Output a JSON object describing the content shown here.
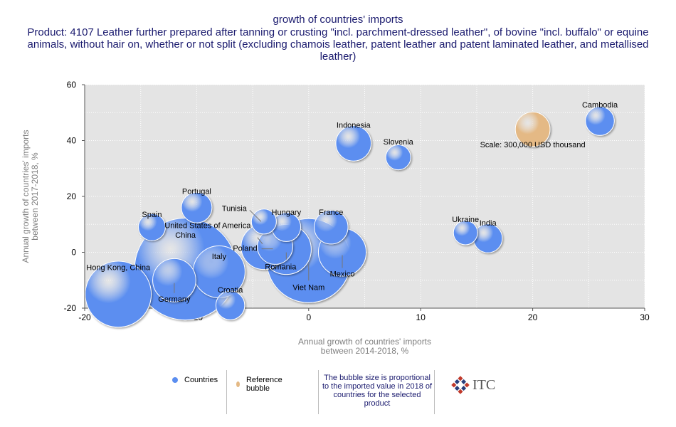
{
  "chart_data": {
    "type": "scatter",
    "title": "growth of countries' imports",
    "subtitle": "Product: 4107 Leather further prepared after tanning or crusting \"incl. parchment-dressed leather\", of bovine \"incl. buffalo\" or equine animals, without hair on, whether or not split (excluding chamois leather, patent leather and patent laminated leather, and metallised leather)",
    "xlabel_lines": [
      "Annual growth of countries' imports",
      "between 2014-2018, %"
    ],
    "ylabel_lines": [
      "Annual growth of countries' imports",
      "between 2017-2018, %"
    ],
    "xlim": [
      -20,
      30
    ],
    "ylim": [
      -20,
      60
    ],
    "x_ticks": [
      -20,
      -10,
      0,
      10,
      20,
      30
    ],
    "y_ticks": [
      -20,
      0,
      20,
      40,
      60
    ],
    "grid": true,
    "series": [
      {
        "name": "Countries",
        "color": "#5b8ef0",
        "points": [
          {
            "label": "Cambodia",
            "x": 26,
            "y": 47,
            "size": 40
          },
          {
            "label": "Indonesia",
            "x": 4,
            "y": 39,
            "size": 60
          },
          {
            "label": "Slovenia",
            "x": 8,
            "y": 34,
            "size": 30
          },
          {
            "label": "Portugal",
            "x": -10,
            "y": 16,
            "size": 45
          },
          {
            "label": "Spain",
            "x": -14,
            "y": 9,
            "size": 35
          },
          {
            "label": "Tunisia",
            "x": -4,
            "y": 11,
            "size": 30
          },
          {
            "label": "Hungary",
            "x": -2,
            "y": 9,
            "size": 40
          },
          {
            "label": "France",
            "x": 2,
            "y": 9,
            "size": 55
          },
          {
            "label": "Ukraine",
            "x": 14,
            "y": 7,
            "size": 28
          },
          {
            "label": "India",
            "x": 16,
            "y": 5,
            "size": 40
          },
          {
            "label": "United States of America",
            "x": -4,
            "y": 2,
            "size": 100
          },
          {
            "label": "Poland",
            "x": -3,
            "y": 2,
            "size": 60
          },
          {
            "label": "Romania",
            "x": -2,
            "y": 1,
            "size": 120
          },
          {
            "label": "Viet Nam",
            "x": 0,
            "y": -3,
            "size": 340
          },
          {
            "label": "Mexico",
            "x": 3,
            "y": 0,
            "size": 110
          },
          {
            "label": "Italy",
            "x": -8,
            "y": -7,
            "size": 130
          },
          {
            "label": "China",
            "x": -11,
            "y": -6,
            "size": 500
          },
          {
            "label": "Germany",
            "x": -12,
            "y": -10,
            "size": 90
          },
          {
            "label": "Hong Kong, China",
            "x": -17,
            "y": -15,
            "size": 210
          },
          {
            "label": "Croatia",
            "x": -7,
            "y": -19,
            "size": 40
          }
        ]
      },
      {
        "name": "Reference bubble",
        "color": "#e4b985",
        "points": [
          {
            "label": "Scale: 300,000 USD thousand",
            "x": 20,
            "y": 44,
            "size": 58
          }
        ]
      }
    ]
  },
  "legend": {
    "countries": "Countries",
    "reference": "Reference bubble",
    "note": "The bubble size is proportional to the imported value in 2018 of countries for the selected product",
    "logo_text": "ITC"
  }
}
